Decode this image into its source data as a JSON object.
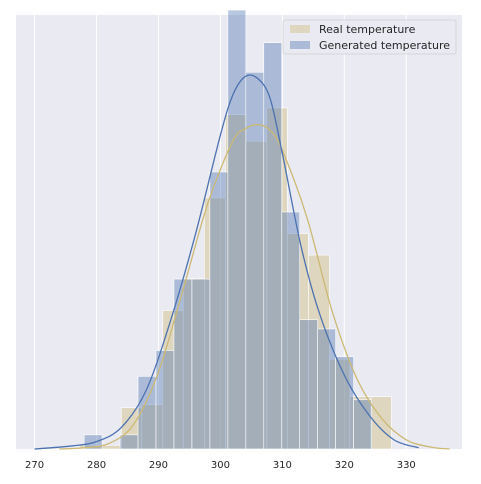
{
  "chart_data": {
    "type": "histogram",
    "xlim": [
      267,
      339
    ],
    "ylim": [
      0,
      0.0705
    ],
    "x_ticks": [
      270,
      280,
      290,
      300,
      310,
      320,
      330
    ],
    "grid": true,
    "legend_position": "top-right",
    "series": [
      {
        "name": "Real temperature",
        "color": "#ccb974",
        "bins": [
          {
            "x0": 277.2,
            "x1": 280.6,
            "density": 0.0006
          },
          {
            "x0": 280.6,
            "x1": 284.0,
            "density": 0.0006
          },
          {
            "x0": 284.0,
            "x1": 287.3,
            "density": 0.0067
          },
          {
            "x0": 287.3,
            "x1": 290.7,
            "density": 0.0072
          },
          {
            "x0": 290.7,
            "x1": 294.0,
            "density": 0.0225
          },
          {
            "x0": 294.0,
            "x1": 297.4,
            "density": 0.0277
          },
          {
            "x0": 297.4,
            "x1": 300.8,
            "density": 0.0408
          },
          {
            "x0": 300.8,
            "x1": 304.1,
            "density": 0.0543
          },
          {
            "x0": 304.1,
            "x1": 307.5,
            "density": 0.05
          },
          {
            "x0": 307.5,
            "x1": 310.8,
            "density": 0.0554
          },
          {
            "x0": 310.8,
            "x1": 314.2,
            "density": 0.035
          },
          {
            "x0": 314.2,
            "x1": 317.6,
            "density": 0.0315
          },
          {
            "x0": 317.6,
            "x1": 320.9,
            "density": 0.0146
          },
          {
            "x0": 320.9,
            "x1": 324.3,
            "density": 0.0085
          },
          {
            "x0": 324.3,
            "x1": 327.6,
            "density": 0.0085
          }
        ],
        "kde": {
          "x": [
            274,
            278,
            282,
            286,
            290,
            294,
            298,
            302,
            304,
            306,
            308,
            310,
            314,
            318,
            322,
            326,
            330,
            334,
            337
          ],
          "y": [
            0.0,
            0.0002,
            0.0009,
            0.004,
            0.0125,
            0.026,
            0.04,
            0.05,
            0.052,
            0.0527,
            0.0518,
            0.0485,
            0.0375,
            0.0225,
            0.0115,
            0.005,
            0.0015,
            0.0003,
            0.0
          ]
        }
      },
      {
        "name": "Generated temperature",
        "color": "#4c72b0",
        "bins": [
          {
            "x0": 278.0,
            "x1": 280.9,
            "density": 0.0023
          },
          {
            "x0": 280.9,
            "x1": 283.8,
            "density": 0.0
          },
          {
            "x0": 283.8,
            "x1": 286.7,
            "density": 0.0023
          },
          {
            "x0": 286.7,
            "x1": 289.6,
            "density": 0.0118
          },
          {
            "x0": 289.6,
            "x1": 292.5,
            "density": 0.016
          },
          {
            "x0": 292.5,
            "x1": 295.4,
            "density": 0.0276
          },
          {
            "x0": 295.4,
            "x1": 298.3,
            "density": 0.0276
          },
          {
            "x0": 298.3,
            "x1": 301.2,
            "density": 0.045
          },
          {
            "x0": 301.2,
            "x1": 304.1,
            "density": 0.0713
          },
          {
            "x0": 304.1,
            "x1": 307.0,
            "density": 0.0612
          },
          {
            "x0": 307.0,
            "x1": 309.9,
            "density": 0.066
          },
          {
            "x0": 309.9,
            "x1": 312.8,
            "density": 0.0385
          },
          {
            "x0": 312.8,
            "x1": 315.7,
            "density": 0.021
          },
          {
            "x0": 315.7,
            "x1": 318.6,
            "density": 0.0195
          },
          {
            "x0": 318.6,
            "x1": 321.5,
            "density": 0.015
          },
          {
            "x0": 321.5,
            "x1": 324.4,
            "density": 0.008
          }
        ],
        "kde": {
          "x": [
            270,
            276,
            280,
            284,
            288,
            292,
            296,
            300,
            302,
            304,
            306,
            308,
            310,
            313,
            316,
            320,
            324,
            328,
            332
          ],
          "y": [
            0.0,
            0.0005,
            0.0012,
            0.0035,
            0.0095,
            0.021,
            0.035,
            0.051,
            0.0575,
            0.0605,
            0.0602,
            0.057,
            0.048,
            0.033,
            0.022,
            0.012,
            0.0055,
            0.0015,
            0.0002
          ]
        }
      }
    ]
  }
}
